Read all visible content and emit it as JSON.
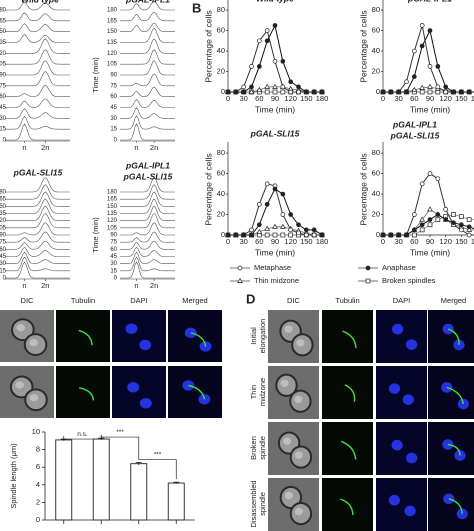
{
  "panel_a": {
    "titles": [
      [
        "Wild type"
      ],
      [
        "pGAL-IPL1"
      ],
      [
        "pGAL-SLI15"
      ],
      [
        "pGAL-IPL1",
        "pGAL-SLI15"
      ]
    ],
    "yaxis": "Time (min)",
    "yticks": [
      0,
      15,
      30,
      45,
      60,
      75,
      90,
      105,
      120,
      135,
      150,
      165,
      180
    ],
    "xlabels": [
      "n",
      "2n"
    ]
  },
  "panel_b": {
    "label": "B",
    "xlabel": "Time (min)",
    "ylabel": "Percentage of cells",
    "x": [
      0,
      15,
      30,
      45,
      60,
      75,
      90,
      105,
      120,
      135,
      150,
      165,
      180
    ],
    "xlim": [
      0,
      180
    ],
    "xticks": [
      0,
      30,
      60,
      90,
      120,
      150,
      180
    ],
    "ylim": [
      0,
      85
    ],
    "yticks": [
      0,
      20,
      40,
      60,
      80
    ],
    "legend": [
      {
        "name": "Metaphase",
        "marker": "open-circle"
      },
      {
        "name": "Anaphase",
        "marker": "filled-circle"
      },
      {
        "name": "Thin midzone",
        "marker": "triangle"
      },
      {
        "name": "Broken spindles",
        "marker": "square"
      }
    ],
    "charts": [
      {
        "title": [
          "Wild type"
        ],
        "values": [
          [
            0,
            0,
            5,
            25,
            50,
            60,
            30,
            5,
            0,
            0,
            0,
            0,
            0
          ],
          [
            0,
            0,
            0,
            5,
            25,
            50,
            65,
            30,
            10,
            5,
            0,
            0,
            0
          ],
          [
            0,
            0,
            0,
            0,
            2,
            5,
            5,
            5,
            3,
            2,
            0,
            0,
            0
          ],
          [
            0,
            0,
            0,
            0,
            0,
            0,
            0,
            0,
            0,
            0,
            0,
            0,
            0
          ]
        ]
      },
      {
        "title": [
          "pGAL-IPL1"
        ],
        "values": [
          [
            0,
            0,
            0,
            10,
            40,
            65,
            25,
            5,
            0,
            0,
            0,
            0,
            0
          ],
          [
            0,
            0,
            0,
            0,
            15,
            45,
            60,
            25,
            5,
            0,
            0,
            0,
            0
          ],
          [
            0,
            0,
            0,
            0,
            2,
            4,
            5,
            3,
            2,
            0,
            0,
            0,
            0
          ],
          [
            0,
            0,
            0,
            0,
            0,
            0,
            0,
            0,
            0,
            0,
            0,
            0,
            0
          ]
        ]
      },
      {
        "title": [
          "pGAL-SLI15"
        ],
        "values": [
          [
            0,
            0,
            0,
            5,
            30,
            50,
            48,
            20,
            5,
            2,
            0,
            0,
            0
          ],
          [
            0,
            0,
            0,
            0,
            10,
            30,
            45,
            40,
            20,
            10,
            5,
            5,
            0
          ],
          [
            0,
            0,
            0,
            0,
            3,
            6,
            8,
            8,
            6,
            4,
            2,
            0,
            0
          ],
          [
            0,
            0,
            0,
            0,
            0,
            0,
            0,
            0,
            0,
            0,
            0,
            0,
            0
          ]
        ]
      },
      {
        "title": [
          "pGAL-IPL1",
          "pGAL-SLI15"
        ],
        "values": [
          [
            0,
            0,
            0,
            0,
            20,
            50,
            60,
            55,
            25,
            10,
            5,
            0,
            0
          ],
          [
            0,
            0,
            0,
            0,
            5,
            10,
            15,
            20,
            15,
            12,
            10,
            8,
            5
          ],
          [
            0,
            0,
            0,
            0,
            5,
            15,
            25,
            20,
            15,
            10,
            8,
            5,
            5
          ],
          [
            0,
            0,
            0,
            0,
            0,
            5,
            10,
            15,
            18,
            20,
            18,
            15,
            15
          ]
        ]
      }
    ]
  },
  "panel_c": {
    "columns": [
      "DIC",
      "Tubulin",
      "DAPI",
      "Merged"
    ],
    "bar_chart": {
      "type": "bar",
      "ylabel": "Spindle length (μm)",
      "values": [
        9.1,
        9.2,
        6.4,
        4.2
      ],
      "errors": [
        0.1,
        0.1,
        0.15,
        0.1
      ],
      "ylim": [
        0,
        10
      ],
      "yticks": [
        0,
        2,
        4,
        6,
        8,
        10
      ],
      "annotations": [
        "n.s.",
        "***",
        "***"
      ]
    }
  },
  "panel_d": {
    "label": "D",
    "columns": [
      "DIC",
      "Tubulin",
      "DAPI",
      "Merged"
    ],
    "rows": [
      [
        "Initial",
        "elongation"
      ],
      [
        "Thin",
        "midzone"
      ],
      [
        "Broken",
        "spindle"
      ],
      [
        "Disassembled",
        "spindle"
      ]
    ]
  }
}
